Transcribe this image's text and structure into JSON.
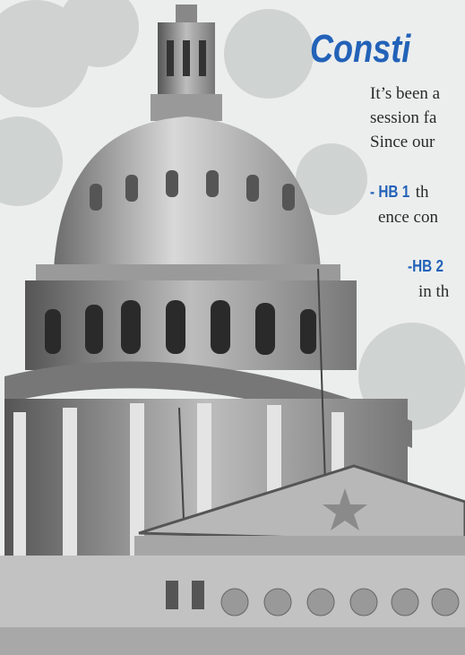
{
  "title": "Consti",
  "paragraph": [
    "It’s been a",
    "session fa",
    "Since our"
  ],
  "items": [
    {
      "label": "- HB 1",
      "text": "th",
      "continuation": "ence con"
    },
    {
      "label": "-HB 2",
      "continuation": "in th"
    }
  ]
}
